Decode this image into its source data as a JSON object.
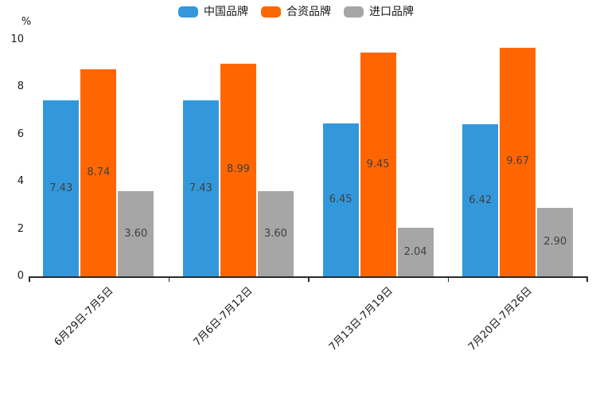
{
  "chart_data": {
    "type": "bar",
    "title": "",
    "ylabel": "%",
    "xlabel": "",
    "ylim": [
      0,
      10
    ],
    "yticks": [
      0,
      2,
      4,
      6,
      8,
      10
    ],
    "grid": false,
    "legend_position": "top",
    "categories": [
      "6月29日-7月5日",
      "7月6日-7月12日",
      "7月13日-7月19日",
      "7月20日-7月26日"
    ],
    "series": [
      {
        "name": "中国品牌",
        "color": "#3398db",
        "values": [
          7.43,
          7.43,
          6.45,
          6.42
        ],
        "labels": [
          "7.43",
          "7.43",
          "6.45",
          "6.42"
        ]
      },
      {
        "name": "合资品牌",
        "color": "#ff6600",
        "values": [
          8.74,
          8.99,
          9.45,
          9.67
        ],
        "labels": [
          "8.74",
          "8.99",
          "9.45",
          "9.67"
        ]
      },
      {
        "name": "进口品牌",
        "color": "#a6a6a6",
        "values": [
          3.6,
          3.6,
          2.04,
          2.9
        ],
        "labels": [
          "3.60",
          "3.60",
          "2.04",
          "2.90"
        ]
      }
    ]
  },
  "colors": {
    "background": "#ffffff",
    "axis": "#2b2b2b",
    "tick_label": "#1a1a1a",
    "bar_value_label": "#404040"
  }
}
